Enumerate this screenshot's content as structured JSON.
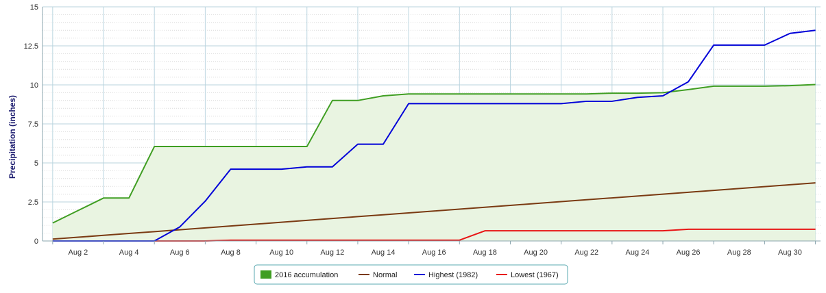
{
  "chart_data": {
    "type": "line",
    "title": "",
    "xlabel": "",
    "ylabel": "Precipitation (inches)",
    "x": [
      1,
      2,
      3,
      4,
      5,
      6,
      7,
      8,
      9,
      10,
      11,
      12,
      13,
      14,
      15,
      16,
      17,
      18,
      19,
      20,
      21,
      22,
      23,
      24,
      25,
      26,
      27,
      28,
      29,
      30,
      31
    ],
    "x_ticks": [
      {
        "day": 2,
        "label": "Aug 2"
      },
      {
        "day": 4,
        "label": "Aug 4"
      },
      {
        "day": 6,
        "label": "Aug 6"
      },
      {
        "day": 8,
        "label": "Aug 8"
      },
      {
        "day": 10,
        "label": "Aug 10"
      },
      {
        "day": 12,
        "label": "Aug 12"
      },
      {
        "day": 14,
        "label": "Aug 14"
      },
      {
        "day": 16,
        "label": "Aug 16"
      },
      {
        "day": 18,
        "label": "Aug 18"
      },
      {
        "day": 20,
        "label": "Aug 20"
      },
      {
        "day": 22,
        "label": "Aug 22"
      },
      {
        "day": 24,
        "label": "Aug 24"
      },
      {
        "day": 26,
        "label": "Aug 26"
      },
      {
        "day": 28,
        "label": "Aug 28"
      },
      {
        "day": 30,
        "label": "Aug 30"
      }
    ],
    "y_ticks": [
      {
        "value": 0,
        "label": "0"
      },
      {
        "value": 2.5,
        "label": "2.5"
      },
      {
        "value": 5,
        "label": "5"
      },
      {
        "value": 7.5,
        "label": "7.5"
      },
      {
        "value": 10,
        "label": "10"
      },
      {
        "value": 12.5,
        "label": "12.5"
      },
      {
        "value": 15,
        "label": "15"
      }
    ],
    "xlim": [
      0.6,
      31.2
    ],
    "ylim": [
      0,
      15
    ],
    "grid": true,
    "legend_position": "bottom-center",
    "series": [
      {
        "name": "2016 accumulation",
        "kind": "area",
        "color": "#3f9e22",
        "fill": "#e9f4e1",
        "values": [
          1.15,
          1.95,
          2.75,
          2.75,
          6.05,
          6.05,
          6.05,
          6.05,
          6.05,
          6.05,
          6.05,
          9.0,
          9.0,
          9.3,
          9.42,
          9.42,
          9.42,
          9.42,
          9.42,
          9.42,
          9.42,
          9.42,
          9.47,
          9.47,
          9.5,
          9.7,
          9.92,
          9.92,
          9.92,
          9.95,
          10.02
        ]
      },
      {
        "name": "Normal",
        "kind": "line",
        "color": "#7a3a12",
        "values": [
          0.12,
          0.24,
          0.36,
          0.48,
          0.6,
          0.72,
          0.84,
          0.96,
          1.08,
          1.2,
          1.32,
          1.44,
          1.56,
          1.68,
          1.8,
          1.92,
          2.04,
          2.16,
          2.28,
          2.4,
          2.52,
          2.64,
          2.76,
          2.88,
          3.0,
          3.12,
          3.24,
          3.36,
          3.48,
          3.6,
          3.72
        ]
      },
      {
        "name": "Highest (1982)",
        "kind": "line",
        "color": "#0000d8",
        "values": [
          0,
          0,
          0,
          0,
          0,
          0.9,
          2.55,
          4.6,
          4.6,
          4.6,
          4.75,
          4.75,
          6.2,
          6.2,
          8.8,
          8.8,
          8.8,
          8.8,
          8.8,
          8.8,
          8.8,
          8.95,
          8.95,
          9.2,
          9.3,
          10.2,
          12.55,
          12.55,
          12.55,
          13.3,
          13.5
        ]
      },
      {
        "name": "Lowest (1967)",
        "kind": "line",
        "color": "#e81414",
        "values": [
          0,
          0,
          0,
          0,
          0,
          0,
          0,
          0.05,
          0.05,
          0.05,
          0.05,
          0.05,
          0.05,
          0.05,
          0.05,
          0.05,
          0.05,
          0.65,
          0.65,
          0.65,
          0.65,
          0.65,
          0.65,
          0.65,
          0.65,
          0.75,
          0.75,
          0.75,
          0.75,
          0.75,
          0.75
        ]
      }
    ]
  }
}
